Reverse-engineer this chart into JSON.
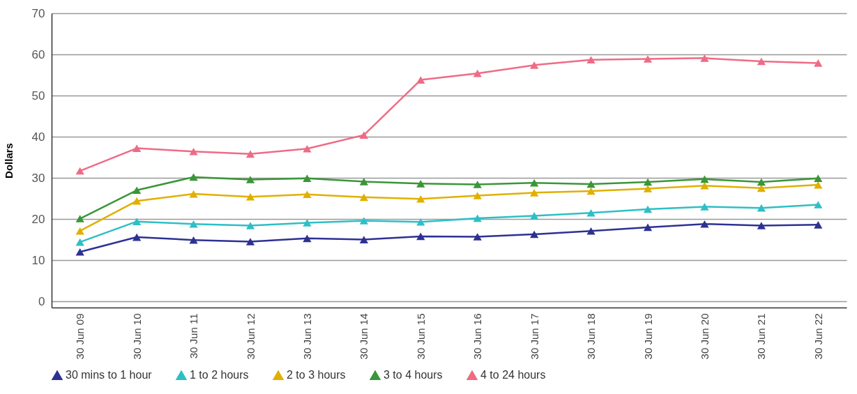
{
  "chart_data": {
    "type": "line",
    "ylabel": "Dollars",
    "categories": [
      "30 Jun 09",
      "30 Jun 10",
      "30 Jun 11",
      "30 Jun 12",
      "30 Jun 13",
      "30 Jun 14",
      "30 Jun 15",
      "30 Jun 16",
      "30 Jun 17",
      "30 Jun 18",
      "30 Jun 19",
      "30 Jun 20",
      "30 Jun 21",
      "30 Jun 22"
    ],
    "series": [
      {
        "name": "30 mins to 1 hour",
        "color": "#2e3192",
        "values": [
          12.0,
          15.6,
          14.9,
          14.5,
          15.3,
          15.0,
          15.8,
          15.7,
          16.3,
          17.1,
          18.0,
          18.8,
          18.4,
          18.6
        ]
      },
      {
        "name": "1 to 2 hours",
        "color": "#2ebfc6",
        "values": [
          14.4,
          19.4,
          18.8,
          18.4,
          19.1,
          19.6,
          19.3,
          20.2,
          20.8,
          21.5,
          22.4,
          23.0,
          22.7,
          23.5
        ]
      },
      {
        "name": "2 to 3 hours",
        "color": "#e0b000",
        "values": [
          17.1,
          24.4,
          26.1,
          25.4,
          26.0,
          25.3,
          24.9,
          25.7,
          26.4,
          26.8,
          27.4,
          28.1,
          27.5,
          28.3
        ]
      },
      {
        "name": "3 to 4 hours",
        "color": "#3a9638",
        "values": [
          20.1,
          27.0,
          30.2,
          29.6,
          29.9,
          29.1,
          28.6,
          28.4,
          28.8,
          28.5,
          29.0,
          29.7,
          29.0,
          29.9
        ]
      },
      {
        "name": "4 to 24 hours",
        "color": "#ef6b85",
        "values": [
          31.7,
          37.2,
          36.4,
          35.8,
          37.1,
          40.4,
          53.8,
          55.4,
          57.4,
          58.7,
          58.9,
          59.1,
          58.3,
          57.9
        ]
      }
    ],
    "ylim": [
      -1.5,
      70
    ],
    "yticks": [
      0,
      10,
      20,
      30,
      40,
      50,
      60,
      70
    ],
    "grid": "y",
    "legend": "bottom",
    "marker": "triangle",
    "line_style": "solid"
  }
}
